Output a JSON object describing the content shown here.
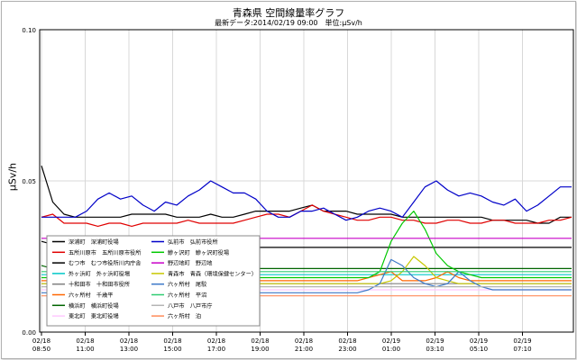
{
  "title": "青森県 空間線量率グラフ",
  "subtitle": "最新データ:2014/02/19 09:00　単位:μSv/h",
  "chart_data": {
    "type": "line",
    "title": "青森県 空間線量率グラフ",
    "ylabel": "μSv/h",
    "xlabel": "",
    "ylim": [
      0.0,
      0.1
    ],
    "y_ticks": [
      "0.00",
      "0.05",
      "0.10"
    ],
    "grid": true,
    "legend_position": "lower-left",
    "x_ticks": [
      {
        "date": "02/18",
        "time": "08:50"
      },
      {
        "date": "02/18",
        "time": "11:00"
      },
      {
        "date": "02/18",
        "time": "13:00"
      },
      {
        "date": "02/18",
        "time": "15:00"
      },
      {
        "date": "02/18",
        "time": "17:00"
      },
      {
        "date": "02/18",
        "time": "19:00"
      },
      {
        "date": "02/18",
        "time": "21:00"
      },
      {
        "date": "02/18",
        "time": "23:00"
      },
      {
        "date": "02/19",
        "time": "01:00"
      },
      {
        "date": "02/19",
        "time": "03:10"
      },
      {
        "date": "02/19",
        "time": "05:10"
      },
      {
        "date": "02/19",
        "time": "07:10"
      }
    ],
    "series": [
      {
        "name": "深浦町　深浦町役場",
        "color": "#000000",
        "values": [
          0.055,
          0.043,
          0.039,
          0.038,
          0.038,
          0.038,
          0.038,
          0.038,
          0.039,
          0.039,
          0.039,
          0.039,
          0.038,
          0.038,
          0.038,
          0.039,
          0.038,
          0.038,
          0.039,
          0.04,
          0.04,
          0.04,
          0.04,
          0.041,
          0.042,
          0.04,
          0.04,
          0.04,
          0.039,
          0.039,
          0.039,
          0.039,
          0.038,
          0.038,
          0.038,
          0.038,
          0.038,
          0.038,
          0.038,
          0.038,
          0.037,
          0.037,
          0.037,
          0.037,
          0.036,
          0.036,
          0.038,
          0.038
        ]
      },
      {
        "name": "五所川原市　五所川原市役所",
        "color": "#e00000",
        "values": [
          0.038,
          0.039,
          0.036,
          0.036,
          0.036,
          0.035,
          0.036,
          0.036,
          0.035,
          0.036,
          0.036,
          0.036,
          0.036,
          0.037,
          0.036,
          0.036,
          0.036,
          0.036,
          0.037,
          0.038,
          0.039,
          0.039,
          0.038,
          0.04,
          0.042,
          0.04,
          0.039,
          0.038,
          0.037,
          0.037,
          0.038,
          0.038,
          0.037,
          0.037,
          0.036,
          0.036,
          0.037,
          0.037,
          0.036,
          0.036,
          0.037,
          0.037,
          0.036,
          0.036,
          0.036,
          0.037,
          0.037,
          0.038
        ]
      },
      {
        "name": "むつ市　むつ市役所川内庁舎",
        "color": "#000000",
        "values": [
          0.03,
          0.029,
          0.028,
          0.028,
          0.028,
          0.027,
          0.028,
          0.028,
          0.028,
          0.028,
          0.028,
          0.028,
          0.028,
          0.028,
          0.028,
          0.028,
          0.028,
          0.028,
          0.028,
          0.028,
          0.028,
          0.028,
          0.028,
          0.028,
          0.028,
          0.028,
          0.028,
          0.028,
          0.028,
          0.028,
          0.028,
          0.028,
          0.028,
          0.028,
          0.028,
          0.028,
          0.028,
          0.028,
          0.028,
          0.028,
          0.028,
          0.028,
          0.028,
          0.028,
          0.028,
          0.028,
          0.028,
          0.028
        ]
      },
      {
        "name": "外ヶ浜町　外ヶ浜町役場",
        "color": "#00c8c8",
        "values": [
          0.019,
          0.019,
          0.019,
          0.019,
          0.019,
          0.019,
          0.019,
          0.019,
          0.019,
          0.019,
          0.019,
          0.019,
          0.019,
          0.019,
          0.019,
          0.019,
          0.019,
          0.019,
          0.019,
          0.019,
          0.019,
          0.019,
          0.019,
          0.019,
          0.019,
          0.019,
          0.019,
          0.019,
          0.019,
          0.019,
          0.019,
          0.019,
          0.019,
          0.019,
          0.019,
          0.019,
          0.019,
          0.019,
          0.019,
          0.019,
          0.019,
          0.019,
          0.019,
          0.019,
          0.019,
          0.019,
          0.019,
          0.019
        ]
      },
      {
        "name": "十和田市　十和田市役所",
        "color": "#808080",
        "values": [
          0.016,
          0.016,
          0.016,
          0.016,
          0.016,
          0.016,
          0.016,
          0.016,
          0.016,
          0.016,
          0.016,
          0.016,
          0.016,
          0.016,
          0.016,
          0.016,
          0.016,
          0.016,
          0.016,
          0.016,
          0.016,
          0.016,
          0.016,
          0.016,
          0.016,
          0.016,
          0.016,
          0.016,
          0.016,
          0.016,
          0.016,
          0.016,
          0.016,
          0.016,
          0.016,
          0.016,
          0.016,
          0.016,
          0.016,
          0.016,
          0.016,
          0.016,
          0.016,
          0.016,
          0.016,
          0.016,
          0.016,
          0.016
        ]
      },
      {
        "name": "六ヶ所村　千歳平",
        "color": "#ff6600",
        "values": [
          0.017,
          0.017,
          0.017,
          0.017,
          0.017,
          0.017,
          0.017,
          0.017,
          0.017,
          0.017,
          0.017,
          0.017,
          0.017,
          0.017,
          0.017,
          0.017,
          0.017,
          0.017,
          0.017,
          0.017,
          0.017,
          0.017,
          0.017,
          0.017,
          0.017,
          0.017,
          0.017,
          0.017,
          0.017,
          0.018,
          0.019,
          0.02,
          0.017,
          0.017,
          0.017,
          0.018,
          0.02,
          0.018,
          0.017,
          0.017,
          0.017,
          0.017,
          0.017,
          0.017,
          0.017,
          0.017,
          0.017,
          0.017
        ]
      },
      {
        "name": "横浜町　横浜町役場",
        "color": "#006400",
        "values": [
          0.022,
          0.021,
          0.021,
          0.021,
          0.021,
          0.021,
          0.021,
          0.021,
          0.021,
          0.021,
          0.021,
          0.021,
          0.021,
          0.021,
          0.021,
          0.021,
          0.021,
          0.021,
          0.021,
          0.021,
          0.021,
          0.021,
          0.021,
          0.021,
          0.021,
          0.021,
          0.021,
          0.021,
          0.021,
          0.021,
          0.021,
          0.021,
          0.021,
          0.021,
          0.021,
          0.021,
          0.021,
          0.021,
          0.021,
          0.021,
          0.021,
          0.021,
          0.021,
          0.021,
          0.021,
          0.021,
          0.021,
          0.021
        ]
      },
      {
        "name": "東北町　東北町役場",
        "color": "#ffc8ff",
        "values": [
          0.014,
          0.014,
          0.014,
          0.014,
          0.014,
          0.014,
          0.014,
          0.014,
          0.014,
          0.014,
          0.014,
          0.014,
          0.014,
          0.014,
          0.014,
          0.014,
          0.014,
          0.014,
          0.014,
          0.014,
          0.014,
          0.014,
          0.014,
          0.014,
          0.014,
          0.014,
          0.014,
          0.014,
          0.014,
          0.014,
          0.014,
          0.014,
          0.014,
          0.014,
          0.014,
          0.014,
          0.014,
          0.014,
          0.014,
          0.014,
          0.014,
          0.014,
          0.014,
          0.014,
          0.014,
          0.014,
          0.014,
          0.014
        ]
      },
      {
        "name": "弘前市　弘前市役所",
        "color": "#0000c8",
        "values": [
          0.038,
          0.038,
          0.038,
          0.038,
          0.04,
          0.044,
          0.046,
          0.044,
          0.045,
          0.042,
          0.04,
          0.043,
          0.042,
          0.045,
          0.047,
          0.05,
          0.048,
          0.046,
          0.046,
          0.044,
          0.04,
          0.038,
          0.038,
          0.04,
          0.04,
          0.041,
          0.039,
          0.037,
          0.038,
          0.04,
          0.041,
          0.04,
          0.038,
          0.043,
          0.048,
          0.05,
          0.047,
          0.045,
          0.046,
          0.045,
          0.043,
          0.042,
          0.044,
          0.04,
          0.042,
          0.045,
          0.048,
          0.048
        ]
      },
      {
        "name": "鰺ヶ沢町　鰺ヶ沢町役場",
        "color": "#00c800",
        "values": [
          0.018,
          0.018,
          0.018,
          0.018,
          0.018,
          0.018,
          0.018,
          0.018,
          0.018,
          0.018,
          0.018,
          0.018,
          0.018,
          0.018,
          0.018,
          0.018,
          0.018,
          0.018,
          0.018,
          0.018,
          0.018,
          0.018,
          0.018,
          0.018,
          0.018,
          0.018,
          0.018,
          0.018,
          0.018,
          0.018,
          0.02,
          0.03,
          0.036,
          0.04,
          0.034,
          0.026,
          0.022,
          0.02,
          0.019,
          0.018,
          0.018,
          0.018,
          0.018,
          0.018,
          0.018,
          0.018,
          0.018,
          0.018
        ]
      },
      {
        "name": "野辺地町　野辺地",
        "color": "#c800c8",
        "values": [
          0.031,
          0.031,
          0.031,
          0.031,
          0.031,
          0.031,
          0.031,
          0.031,
          0.031,
          0.031,
          0.031,
          0.031,
          0.031,
          0.031,
          0.031,
          0.031,
          0.031,
          0.031,
          0.031,
          0.031,
          0.031,
          0.031,
          0.031,
          0.031,
          0.031,
          0.031,
          0.031,
          0.031,
          0.031,
          0.031,
          0.031,
          0.031,
          0.031,
          0.031,
          0.031,
          0.031,
          0.031,
          0.031,
          0.031,
          0.031,
          0.031,
          0.031,
          0.031,
          0.031,
          0.031,
          0.031,
          0.031,
          0.031
        ]
      },
      {
        "name": "青森市　青森（環境保健センター）",
        "color": "#c8c800",
        "values": [
          0.016,
          0.016,
          0.016,
          0.016,
          0.016,
          0.016,
          0.016,
          0.016,
          0.016,
          0.016,
          0.016,
          0.016,
          0.016,
          0.016,
          0.016,
          0.016,
          0.016,
          0.016,
          0.016,
          0.016,
          0.016,
          0.016,
          0.016,
          0.016,
          0.016,
          0.016,
          0.016,
          0.016,
          0.016,
          0.016,
          0.016,
          0.017,
          0.02,
          0.025,
          0.022,
          0.018,
          0.017,
          0.016,
          0.016,
          0.016,
          0.016,
          0.016,
          0.016,
          0.016,
          0.016,
          0.016,
          0.016,
          0.016
        ]
      },
      {
        "name": "六ヶ所村　尾駮",
        "color": "#3c78c8",
        "values": [
          0.013,
          0.013,
          0.013,
          0.013,
          0.013,
          0.013,
          0.013,
          0.013,
          0.013,
          0.013,
          0.013,
          0.013,
          0.013,
          0.013,
          0.013,
          0.013,
          0.013,
          0.013,
          0.013,
          0.013,
          0.013,
          0.013,
          0.013,
          0.013,
          0.013,
          0.013,
          0.013,
          0.013,
          0.013,
          0.014,
          0.016,
          0.024,
          0.022,
          0.018,
          0.016,
          0.015,
          0.016,
          0.02,
          0.017,
          0.015,
          0.014,
          0.014,
          0.014,
          0.014,
          0.014,
          0.014,
          0.014,
          0.014
        ]
      },
      {
        "name": "六ヶ所村　平沼",
        "color": "#2ecc71",
        "values": [
          0.02,
          0.02,
          0.02,
          0.02,
          0.02,
          0.02,
          0.02,
          0.02,
          0.02,
          0.02,
          0.02,
          0.02,
          0.02,
          0.02,
          0.02,
          0.02,
          0.02,
          0.02,
          0.02,
          0.02,
          0.02,
          0.02,
          0.02,
          0.02,
          0.02,
          0.02,
          0.02,
          0.02,
          0.02,
          0.02,
          0.02,
          0.02,
          0.02,
          0.02,
          0.02,
          0.02,
          0.02,
          0.02,
          0.02,
          0.02,
          0.02,
          0.02,
          0.02,
          0.02,
          0.02,
          0.02,
          0.02,
          0.02
        ]
      },
      {
        "name": "八戸市　八戸市庁",
        "color": "#b4b4b4",
        "values": [
          0.015,
          0.015,
          0.015,
          0.015,
          0.015,
          0.015,
          0.015,
          0.015,
          0.015,
          0.015,
          0.015,
          0.015,
          0.015,
          0.015,
          0.015,
          0.015,
          0.015,
          0.015,
          0.015,
          0.015,
          0.015,
          0.015,
          0.015,
          0.015,
          0.015,
          0.015,
          0.015,
          0.015,
          0.015,
          0.015,
          0.015,
          0.015,
          0.015,
          0.015,
          0.015,
          0.015,
          0.015,
          0.015,
          0.015,
          0.015,
          0.015,
          0.015,
          0.015,
          0.015,
          0.015,
          0.015,
          0.015,
          0.015
        ]
      },
      {
        "name": "六ヶ所村　泊",
        "color": "#ff8c5a",
        "values": [
          0.012,
          0.012,
          0.012,
          0.012,
          0.012,
          0.012,
          0.012,
          0.012,
          0.012,
          0.012,
          0.012,
          0.012,
          0.012,
          0.012,
          0.012,
          0.012,
          0.012,
          0.012,
          0.012,
          0.012,
          0.012,
          0.012,
          0.012,
          0.012,
          0.012,
          0.012,
          0.012,
          0.012,
          0.012,
          0.012,
          0.012,
          0.012,
          0.012,
          0.012,
          0.012,
          0.012,
          0.012,
          0.012,
          0.012,
          0.012,
          0.012,
          0.012,
          0.012,
          0.012,
          0.012,
          0.012,
          0.012,
          0.012
        ]
      }
    ]
  }
}
